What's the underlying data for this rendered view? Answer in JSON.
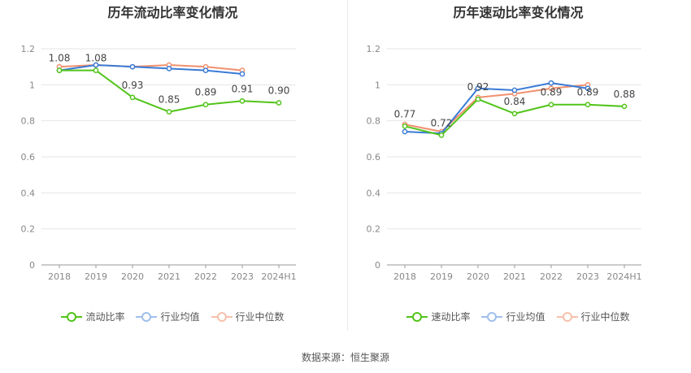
{
  "chart_data": [
    {
      "type": "line",
      "title": "历年流动比率变化情况",
      "categories": [
        "2018",
        "2019",
        "2020",
        "2021",
        "2022",
        "2023",
        "2024H1"
      ],
      "ylim": [
        0,
        1.2
      ],
      "yticks": [
        "0",
        "0.2",
        "0.4",
        "0.6",
        "0.8",
        "1",
        "1.2"
      ],
      "grid": true,
      "legend_position": "bottom",
      "series": [
        {
          "name": "流动比率",
          "color": "#52c41a",
          "values": [
            1.08,
            1.08,
            0.93,
            0.85,
            0.89,
            0.91,
            0.9
          ],
          "labels": [
            "1.08",
            "1.08",
            "0.93",
            "0.85",
            "0.89",
            "0.91",
            "0.90"
          ]
        },
        {
          "name": "行业均值",
          "color": "#3a7bd5",
          "values": [
            1.08,
            1.11,
            1.1,
            1.09,
            1.08,
            1.06,
            null
          ]
        },
        {
          "name": "行业中位数",
          "color": "#f0906e",
          "values": [
            1.1,
            1.11,
            1.1,
            1.11,
            1.1,
            1.08,
            null
          ]
        }
      ]
    },
    {
      "type": "line",
      "title": "历年速动比率变化情况",
      "categories": [
        "2018",
        "2019",
        "2020",
        "2021",
        "2022",
        "2023",
        "2024H1"
      ],
      "ylim": [
        0,
        1.2
      ],
      "yticks": [
        "0",
        "0.2",
        "0.4",
        "0.6",
        "0.8",
        "1",
        "1.2"
      ],
      "grid": true,
      "legend_position": "bottom",
      "series": [
        {
          "name": "速动比率",
          "color": "#52c41a",
          "values": [
            0.77,
            0.72,
            0.92,
            0.84,
            0.89,
            0.89,
            0.88
          ],
          "labels": [
            "0.77",
            "0.72",
            "0.92",
            "0.84",
            "0.89",
            "0.89",
            "0.88"
          ]
        },
        {
          "name": "行业均值",
          "color": "#3a7bd5",
          "values": [
            0.74,
            0.73,
            0.98,
            0.97,
            1.01,
            0.98,
            null
          ]
        },
        {
          "name": "行业中位数",
          "color": "#f0906e",
          "values": [
            0.78,
            0.74,
            0.93,
            0.95,
            0.98,
            1.0,
            null
          ]
        }
      ]
    }
  ],
  "source": "数据来源：恒生聚源"
}
